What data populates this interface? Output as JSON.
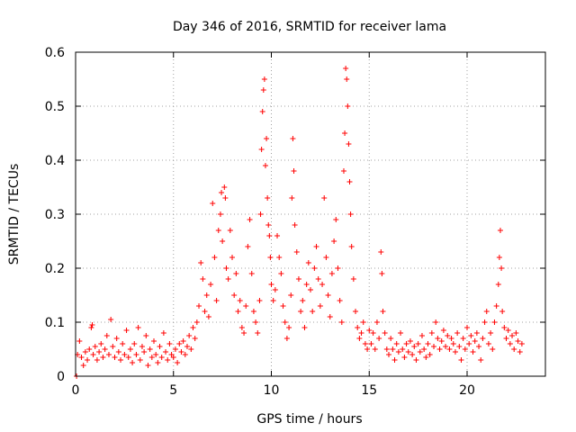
{
  "chart_data": {
    "type": "scatter",
    "title": "Day 346 of 2016, SRMTID for receiver lama",
    "xlabel": "GPS time / hours",
    "ylabel": "SRMTID / TECUs",
    "xlim": [
      0,
      24
    ],
    "ylim": [
      0,
      0.6
    ],
    "x_ticks": [
      0,
      5,
      10,
      15,
      20
    ],
    "y_ticks": [
      0,
      0.1,
      0.2,
      0.3,
      0.4,
      0.5,
      0.6
    ],
    "x_tick_labels": [
      "0",
      "5",
      "10",
      "15",
      "20"
    ],
    "y_tick_labels": [
      "0",
      "0.1",
      "0.2",
      "0.3",
      "0.4",
      "0.5",
      "0.6"
    ],
    "grid": true,
    "marker": "+",
    "color": "#ff0000",
    "series": [
      {
        "name": "SRMTID",
        "points": [
          [
            0.05,
            0.0
          ],
          [
            0.1,
            0.04
          ],
          [
            0.2,
            0.065
          ],
          [
            0.3,
            0.035
          ],
          [
            0.4,
            0.02
          ],
          [
            0.5,
            0.045
          ],
          [
            0.6,
            0.03
          ],
          [
            0.7,
            0.05
          ],
          [
            0.8,
            0.09
          ],
          [
            0.85,
            0.095
          ],
          [
            0.9,
            0.04
          ],
          [
            1.0,
            0.055
          ],
          [
            1.1,
            0.03
          ],
          [
            1.2,
            0.045
          ],
          [
            1.3,
            0.06
          ],
          [
            1.4,
            0.035
          ],
          [
            1.5,
            0.05
          ],
          [
            1.6,
            0.075
          ],
          [
            1.7,
            0.04
          ],
          [
            1.8,
            0.105
          ],
          [
            1.9,
            0.055
          ],
          [
            2.0,
            0.035
          ],
          [
            2.1,
            0.07
          ],
          [
            2.2,
            0.045
          ],
          [
            2.3,
            0.03
          ],
          [
            2.4,
            0.06
          ],
          [
            2.5,
            0.04
          ],
          [
            2.6,
            0.085
          ],
          [
            2.7,
            0.035
          ],
          [
            2.8,
            0.05
          ],
          [
            2.9,
            0.025
          ],
          [
            3.0,
            0.06
          ],
          [
            3.1,
            0.04
          ],
          [
            3.2,
            0.09
          ],
          [
            3.3,
            0.03
          ],
          [
            3.4,
            0.055
          ],
          [
            3.5,
            0.045
          ],
          [
            3.6,
            0.075
          ],
          [
            3.7,
            0.02
          ],
          [
            3.8,
            0.05
          ],
          [
            3.9,
            0.035
          ],
          [
            4.0,
            0.065
          ],
          [
            4.1,
            0.04
          ],
          [
            4.2,
            0.025
          ],
          [
            4.3,
            0.055
          ],
          [
            4.4,
            0.035
          ],
          [
            4.5,
            0.08
          ],
          [
            4.6,
            0.045
          ],
          [
            4.7,
            0.03
          ],
          [
            4.8,
            0.06
          ],
          [
            4.9,
            0.04
          ],
          [
            5.0,
            0.035
          ],
          [
            5.1,
            0.05
          ],
          [
            5.2,
            0.025
          ],
          [
            5.3,
            0.06
          ],
          [
            5.4,
            0.045
          ],
          [
            5.5,
            0.065
          ],
          [
            5.6,
            0.04
          ],
          [
            5.7,
            0.055
          ],
          [
            5.8,
            0.075
          ],
          [
            5.9,
            0.05
          ],
          [
            6.0,
            0.09
          ],
          [
            6.1,
            0.07
          ],
          [
            6.2,
            0.1
          ],
          [
            6.3,
            0.13
          ],
          [
            6.4,
            0.21
          ],
          [
            6.5,
            0.18
          ],
          [
            6.6,
            0.12
          ],
          [
            6.7,
            0.15
          ],
          [
            6.8,
            0.11
          ],
          [
            6.9,
            0.17
          ],
          [
            7.0,
            0.32
          ],
          [
            7.1,
            0.22
          ],
          [
            7.2,
            0.14
          ],
          [
            7.3,
            0.27
          ],
          [
            7.4,
            0.3
          ],
          [
            7.45,
            0.34
          ],
          [
            7.5,
            0.25
          ],
          [
            7.6,
            0.35
          ],
          [
            7.65,
            0.33
          ],
          [
            7.7,
            0.2
          ],
          [
            7.8,
            0.18
          ],
          [
            7.9,
            0.27
          ],
          [
            8.0,
            0.22
          ],
          [
            8.1,
            0.15
          ],
          [
            8.2,
            0.19
          ],
          [
            8.3,
            0.12
          ],
          [
            8.4,
            0.14
          ],
          [
            8.5,
            0.09
          ],
          [
            8.6,
            0.08
          ],
          [
            8.7,
            0.13
          ],
          [
            8.8,
            0.24
          ],
          [
            8.9,
            0.29
          ],
          [
            9.0,
            0.19
          ],
          [
            9.1,
            0.12
          ],
          [
            9.2,
            0.1
          ],
          [
            9.3,
            0.08
          ],
          [
            9.4,
            0.14
          ],
          [
            9.45,
            0.3
          ],
          [
            9.5,
            0.42
          ],
          [
            9.55,
            0.49
          ],
          [
            9.6,
            0.53
          ],
          [
            9.65,
            0.55
          ],
          [
            9.7,
            0.39
          ],
          [
            9.75,
            0.44
          ],
          [
            9.8,
            0.33
          ],
          [
            9.85,
            0.28
          ],
          [
            9.9,
            0.26
          ],
          [
            9.95,
            0.22
          ],
          [
            10.0,
            0.17
          ],
          [
            10.1,
            0.14
          ],
          [
            10.2,
            0.16
          ],
          [
            10.3,
            0.26
          ],
          [
            10.4,
            0.22
          ],
          [
            10.5,
            0.19
          ],
          [
            10.6,
            0.13
          ],
          [
            10.7,
            0.1
          ],
          [
            10.8,
            0.07
          ],
          [
            10.9,
            0.09
          ],
          [
            11.0,
            0.15
          ],
          [
            11.05,
            0.33
          ],
          [
            11.1,
            0.44
          ],
          [
            11.15,
            0.38
          ],
          [
            11.2,
            0.28
          ],
          [
            11.3,
            0.23
          ],
          [
            11.4,
            0.18
          ],
          [
            11.5,
            0.12
          ],
          [
            11.6,
            0.14
          ],
          [
            11.7,
            0.09
          ],
          [
            11.8,
            0.17
          ],
          [
            11.9,
            0.21
          ],
          [
            12.0,
            0.16
          ],
          [
            12.1,
            0.12
          ],
          [
            12.2,
            0.2
          ],
          [
            12.3,
            0.24
          ],
          [
            12.4,
            0.18
          ],
          [
            12.5,
            0.13
          ],
          [
            12.6,
            0.17
          ],
          [
            12.7,
            0.33
          ],
          [
            12.8,
            0.22
          ],
          [
            12.9,
            0.15
          ],
          [
            13.0,
            0.11
          ],
          [
            13.1,
            0.19
          ],
          [
            13.2,
            0.25
          ],
          [
            13.3,
            0.29
          ],
          [
            13.4,
            0.2
          ],
          [
            13.5,
            0.14
          ],
          [
            13.6,
            0.1
          ],
          [
            13.7,
            0.38
          ],
          [
            13.75,
            0.45
          ],
          [
            13.8,
            0.57
          ],
          [
            13.85,
            0.55
          ],
          [
            13.9,
            0.5
          ],
          [
            13.95,
            0.43
          ],
          [
            14.0,
            0.36
          ],
          [
            14.05,
            0.3
          ],
          [
            14.1,
            0.24
          ],
          [
            14.2,
            0.18
          ],
          [
            14.3,
            0.12
          ],
          [
            14.4,
            0.09
          ],
          [
            14.5,
            0.07
          ],
          [
            14.6,
            0.08
          ],
          [
            14.7,
            0.1
          ],
          [
            14.8,
            0.06
          ],
          [
            14.9,
            0.05
          ],
          [
            15.0,
            0.085
          ],
          [
            15.1,
            0.06
          ],
          [
            15.2,
            0.08
          ],
          [
            15.3,
            0.05
          ],
          [
            15.4,
            0.1
          ],
          [
            15.5,
            0.07
          ],
          [
            15.6,
            0.23
          ],
          [
            15.65,
            0.19
          ],
          [
            15.7,
            0.12
          ],
          [
            15.8,
            0.08
          ],
          [
            15.9,
            0.05
          ],
          [
            16.0,
            0.04
          ],
          [
            16.1,
            0.07
          ],
          [
            16.2,
            0.05
          ],
          [
            16.3,
            0.03
          ],
          [
            16.4,
            0.06
          ],
          [
            16.5,
            0.045
          ],
          [
            16.6,
            0.08
          ],
          [
            16.7,
            0.05
          ],
          [
            16.8,
            0.035
          ],
          [
            16.9,
            0.06
          ],
          [
            17.0,
            0.045
          ],
          [
            17.1,
            0.065
          ],
          [
            17.2,
            0.04
          ],
          [
            17.3,
            0.055
          ],
          [
            17.4,
            0.03
          ],
          [
            17.5,
            0.06
          ],
          [
            17.6,
            0.045
          ],
          [
            17.7,
            0.075
          ],
          [
            17.8,
            0.05
          ],
          [
            17.9,
            0.035
          ],
          [
            18.0,
            0.06
          ],
          [
            18.1,
            0.04
          ],
          [
            18.2,
            0.08
          ],
          [
            18.3,
            0.055
          ],
          [
            18.4,
            0.1
          ],
          [
            18.5,
            0.07
          ],
          [
            18.6,
            0.05
          ],
          [
            18.7,
            0.065
          ],
          [
            18.8,
            0.085
          ],
          [
            18.9,
            0.055
          ],
          [
            19.0,
            0.075
          ],
          [
            19.1,
            0.05
          ],
          [
            19.2,
            0.07
          ],
          [
            19.3,
            0.06
          ],
          [
            19.4,
            0.045
          ],
          [
            19.5,
            0.08
          ],
          [
            19.6,
            0.055
          ],
          [
            19.7,
            0.03
          ],
          [
            19.8,
            0.07
          ],
          [
            19.9,
            0.05
          ],
          [
            20.0,
            0.09
          ],
          [
            20.1,
            0.06
          ],
          [
            20.2,
            0.075
          ],
          [
            20.3,
            0.045
          ],
          [
            20.4,
            0.065
          ],
          [
            20.5,
            0.08
          ],
          [
            20.6,
            0.055
          ],
          [
            20.7,
            0.03
          ],
          [
            20.8,
            0.07
          ],
          [
            20.9,
            0.1
          ],
          [
            21.0,
            0.12
          ],
          [
            21.1,
            0.06
          ],
          [
            21.2,
            0.08
          ],
          [
            21.3,
            0.05
          ],
          [
            21.4,
            0.1
          ],
          [
            21.5,
            0.13
          ],
          [
            21.6,
            0.17
          ],
          [
            21.65,
            0.22
          ],
          [
            21.7,
            0.27
          ],
          [
            21.75,
            0.2
          ],
          [
            21.8,
            0.12
          ],
          [
            21.9,
            0.09
          ],
          [
            22.0,
            0.07
          ],
          [
            22.1,
            0.085
          ],
          [
            22.2,
            0.06
          ],
          [
            22.3,
            0.075
          ],
          [
            22.4,
            0.05
          ],
          [
            22.5,
            0.08
          ],
          [
            22.6,
            0.065
          ],
          [
            22.7,
            0.045
          ],
          [
            22.8,
            0.06
          ]
        ]
      }
    ]
  }
}
